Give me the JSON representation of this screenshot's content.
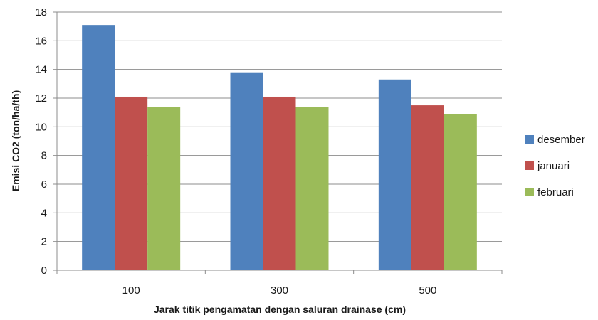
{
  "chart_data": {
    "type": "bar",
    "title": "",
    "xlabel": "Jarak titik pengamatan dengan saluran drainase (cm)",
    "ylabel": "Emisi CO2 (ton/ha/th)",
    "categories": [
      "100",
      "300",
      "500"
    ],
    "series": [
      {
        "name": "desember",
        "color": "#4f81bd",
        "values": [
          17.1,
          13.8,
          13.3
        ]
      },
      {
        "name": "januari",
        "color": "#c0504d",
        "values": [
          12.1,
          12.1,
          11.5
        ]
      },
      {
        "name": "februari",
        "color": "#9bbb59",
        "values": [
          11.4,
          11.4,
          10.9
        ]
      }
    ],
    "ylim": [
      0,
      18
    ],
    "yticks": [
      "0",
      "2",
      "4",
      "6",
      "8",
      "10",
      "12",
      "14",
      "16",
      "18"
    ],
    "grid": true,
    "legend": "right"
  }
}
